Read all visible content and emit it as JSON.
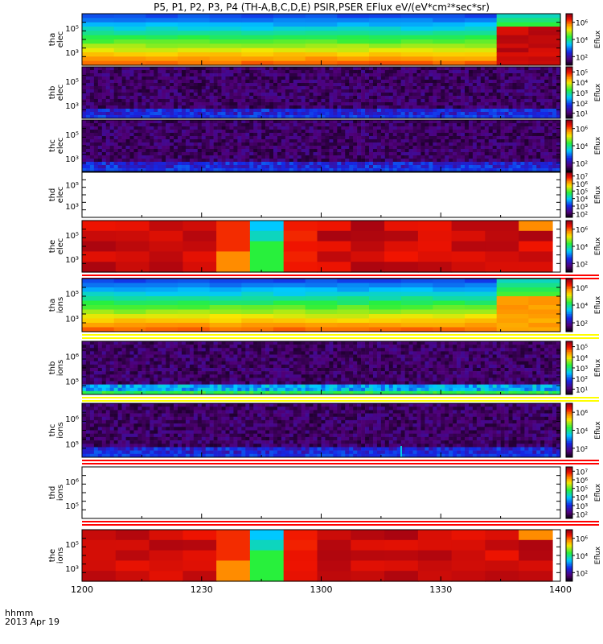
{
  "title_text": "P5, P1, P2, P3, P4 (TH-A,B,C,D,E) PSIR,PSER EFlux eV/(eV*cm²*sec*sr)",
  "x_axis": {
    "row1": "hhmm",
    "row2": "2013 Apr 19"
  },
  "colors": {
    "flag_red": "#ff0000",
    "flag_yellow": "#ffff00",
    "frame": "#000000"
  },
  "chart_data": {
    "type": "heatmap",
    "x_range": [
      "12:00",
      "14:00"
    ],
    "x_ticks": [
      "1200",
      "1230",
      "1300",
      "1330",
      "1400"
    ],
    "colorbar_label": "Eflux",
    "panels": [
      {
        "probe": "tha",
        "species": "elec",
        "label": "tha elec",
        "y_ticks": [
          "10⁵",
          "10³"
        ],
        "cbar_ticks": [
          "10⁶",
          "10⁴",
          "10²"
        ],
        "pattern": "gradient",
        "flag": "none"
      },
      {
        "probe": "thb",
        "species": "elec",
        "label": "thb elec",
        "y_ticks": [
          "10⁵",
          "10³"
        ],
        "cbar_ticks": [
          "10⁵",
          "10⁴",
          "10³",
          "10²",
          "10¹"
        ],
        "pattern": "noise",
        "flag": "none"
      },
      {
        "probe": "thc",
        "species": "elec",
        "label": "thc elec",
        "y_ticks": [
          "10⁵",
          "10³"
        ],
        "cbar_ticks": [
          "10⁶",
          "10⁴",
          "10²"
        ],
        "pattern": "noise",
        "flag": "none"
      },
      {
        "probe": "thd",
        "species": "elec",
        "label": "thd elec",
        "y_ticks": [
          "10⁵",
          "10³"
        ],
        "cbar_ticks": [
          "10⁷",
          "10⁶",
          "10⁵",
          "10⁴",
          "10³",
          "10²"
        ],
        "pattern": "empty",
        "flag": "none"
      },
      {
        "probe": "the",
        "species": "elec",
        "label": "the elec",
        "y_ticks": [
          "10⁵",
          "10³"
        ],
        "cbar_ticks": [
          "10⁶",
          "10⁴",
          "10²"
        ],
        "pattern": "red",
        "flag": "red"
      },
      {
        "probe": "tha",
        "species": "ions",
        "label": "tha ions",
        "y_ticks": [
          "10⁵",
          "10³"
        ],
        "cbar_ticks": [
          "10⁶",
          "10⁴",
          "10²"
        ],
        "pattern": "gradient",
        "flag": "yellow"
      },
      {
        "probe": "thb",
        "species": "ions",
        "label": "thb ions",
        "y_ticks": [
          "10⁶",
          "10⁵"
        ],
        "cbar_ticks": [
          "10⁵",
          "10⁴",
          "10³",
          "10²",
          "10¹"
        ],
        "pattern": "noise",
        "flag": "yellow"
      },
      {
        "probe": "thc",
        "species": "ions",
        "label": "thc ions",
        "y_ticks": [
          "10⁶",
          "10⁵"
        ],
        "cbar_ticks": [
          "10⁶",
          "10⁴",
          "10²"
        ],
        "pattern": "noise",
        "flag": "red"
      },
      {
        "probe": "thd",
        "species": "ions",
        "label": "thd ions",
        "y_ticks": [
          "10⁶",
          "10⁵"
        ],
        "cbar_ticks": [
          "10⁷",
          "10⁶",
          "10⁵",
          "10⁴",
          "10³",
          "10²"
        ],
        "pattern": "empty",
        "flag": "red"
      },
      {
        "probe": "the",
        "species": "ions",
        "label": "the ions",
        "y_ticks": [
          "10⁵",
          "10³"
        ],
        "cbar_ticks": [
          "10⁶",
          "10⁴",
          "10²"
        ],
        "pattern": "red",
        "flag": "none"
      }
    ]
  }
}
